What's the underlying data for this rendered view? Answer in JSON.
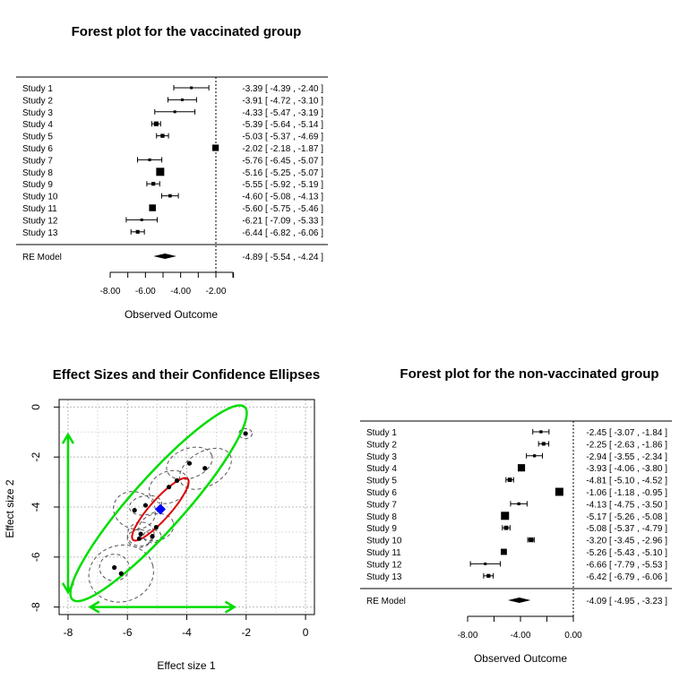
{
  "chart_data": [
    {
      "type": "forest",
      "title": "Forest plot for the vaccinated group",
      "xlabel": "Observed Outcome",
      "ticks": [
        -8,
        -6,
        -4,
        -2
      ],
      "tick_labels": [
        "-8.00",
        "-6.00",
        "-4.00",
        "-2.00"
      ],
      "xlim": [
        -8,
        -2
      ],
      "reference_line": -2,
      "studies": [
        {
          "label": "Study  1",
          "est": -3.39,
          "lo": -4.39,
          "hi": -2.4,
          "text": "-3.39 [ -4.39 , -2.40 ]"
        },
        {
          "label": "Study  2",
          "est": -3.91,
          "lo": -4.72,
          "hi": -3.1,
          "text": "-3.91 [ -4.72 , -3.10 ]"
        },
        {
          "label": "Study  3",
          "est": -4.33,
          "lo": -5.47,
          "hi": -3.19,
          "text": "-4.33 [ -5.47 , -3.19 ]"
        },
        {
          "label": "Study  4",
          "est": -5.39,
          "lo": -5.64,
          "hi": -5.14,
          "text": "-5.39 [ -5.64 , -5.14 ]"
        },
        {
          "label": "Study  5",
          "est": -5.03,
          "lo": -5.37,
          "hi": -4.69,
          "text": "-5.03 [ -5.37 , -4.69 ]"
        },
        {
          "label": "Study  6",
          "est": -2.02,
          "lo": -2.18,
          "hi": -1.87,
          "text": "-2.02 [ -2.18 , -1.87 ]"
        },
        {
          "label": "Study  7",
          "est": -5.76,
          "lo": -6.45,
          "hi": -5.07,
          "text": "-5.76 [ -6.45 , -5.07 ]"
        },
        {
          "label": "Study  8",
          "est": -5.16,
          "lo": -5.25,
          "hi": -5.07,
          "text": "-5.16 [ -5.25 , -5.07 ]"
        },
        {
          "label": "Study  9",
          "est": -5.55,
          "lo": -5.92,
          "hi": -5.19,
          "text": "-5.55 [ -5.92 , -5.19 ]"
        },
        {
          "label": "Study  10",
          "est": -4.6,
          "lo": -5.08,
          "hi": -4.13,
          "text": "-4.60 [ -5.08 , -4.13 ]"
        },
        {
          "label": "Study  11",
          "est": -5.6,
          "lo": -5.75,
          "hi": -5.46,
          "text": "-5.60 [ -5.75 , -5.46 ]"
        },
        {
          "label": "Study  12",
          "est": -6.21,
          "lo": -7.09,
          "hi": -5.33,
          "text": "-6.21 [ -7.09 , -5.33 ]"
        },
        {
          "label": "Study  13",
          "est": -6.44,
          "lo": -6.82,
          "hi": -6.06,
          "text": "-6.44 [ -6.82 , -6.06 ]"
        }
      ],
      "summary": {
        "label": "RE Model",
        "est": -4.89,
        "lo": -5.54,
        "hi": -4.24,
        "text": "-4.89 [ -5.54 , -4.24 ]"
      }
    },
    {
      "type": "scatter",
      "title": "Effect Sizes and their Confidence Ellipses",
      "xlabel": "Effect size 1",
      "ylabel": "Effect size 2",
      "xlim": [
        -8.3,
        0.3
      ],
      "ylim": [
        -8.3,
        0.3
      ],
      "xticks": [
        -8,
        -6,
        -4,
        -2,
        0
      ],
      "yticks": [
        0,
        -2,
        -4,
        -6,
        -8
      ],
      "grid": true,
      "points": [
        {
          "x": -3.39,
          "y": -2.45
        },
        {
          "x": -3.91,
          "y": -2.25
        },
        {
          "x": -4.33,
          "y": -2.94
        },
        {
          "x": -5.39,
          "y": -3.93
        },
        {
          "x": -5.03,
          "y": -4.81
        },
        {
          "x": -2.02,
          "y": -1.06
        },
        {
          "x": -5.76,
          "y": -4.13
        },
        {
          "x": -5.16,
          "y": -5.17
        },
        {
          "x": -5.55,
          "y": -5.08
        },
        {
          "x": -4.6,
          "y": -3.2
        },
        {
          "x": -5.6,
          "y": -5.26
        },
        {
          "x": -6.21,
          "y": -6.66
        },
        {
          "x": -6.44,
          "y": -6.42
        }
      ],
      "pooled_estimate": {
        "x": -4.89,
        "y": -4.09
      },
      "colors": {
        "points": "#000000",
        "study_ellipses": "#555555",
        "pooled_ellipse": "#dd0000",
        "prediction_ellipse": "#00dd00",
        "pooled_marker": "#0000ff",
        "arrows": "#00dd00"
      }
    },
    {
      "type": "forest",
      "title": "Forest plot for the non-vaccinated group",
      "xlabel": "Observed Outcome",
      "ticks": [
        -8,
        -4,
        0
      ],
      "tick_labels": [
        "-8.00",
        "-4.00",
        "0.00"
      ],
      "xlim": [
        -8,
        0
      ],
      "reference_line": 0,
      "studies": [
        {
          "label": "Study  1",
          "est": -2.45,
          "lo": -3.07,
          "hi": -1.84,
          "text": "-2.45 [ -3.07 , -1.84 ]"
        },
        {
          "label": "Study  2",
          "est": -2.25,
          "lo": -2.63,
          "hi": -1.86,
          "text": "-2.25 [ -2.63 , -1.86 ]"
        },
        {
          "label": "Study  3",
          "est": -2.94,
          "lo": -3.55,
          "hi": -2.34,
          "text": "-2.94 [ -3.55 , -2.34 ]"
        },
        {
          "label": "Study  4",
          "est": -3.93,
          "lo": -4.06,
          "hi": -3.8,
          "text": "-3.93 [ -4.06 , -3.80 ]"
        },
        {
          "label": "Study  5",
          "est": -4.81,
          "lo": -5.1,
          "hi": -4.52,
          "text": "-4.81 [ -5.10 , -4.52 ]"
        },
        {
          "label": "Study  6",
          "est": -1.06,
          "lo": -1.18,
          "hi": -0.95,
          "text": "-1.06 [ -1.18 , -0.95 ]"
        },
        {
          "label": "Study  7",
          "est": -4.13,
          "lo": -4.75,
          "hi": -3.5,
          "text": "-4.13 [ -4.75 , -3.50 ]"
        },
        {
          "label": "Study  8",
          "est": -5.17,
          "lo": -5.26,
          "hi": -5.08,
          "text": "-5.17 [ -5.26 , -5.08 ]"
        },
        {
          "label": "Study  9",
          "est": -5.08,
          "lo": -5.37,
          "hi": -4.79,
          "text": "-5.08 [ -5.37 , -4.79 ]"
        },
        {
          "label": "Study  10",
          "est": -3.2,
          "lo": -3.45,
          "hi": -2.96,
          "text": "-3.20 [ -3.45 , -2.96 ]"
        },
        {
          "label": "Study  11",
          "est": -5.26,
          "lo": -5.43,
          "hi": -5.1,
          "text": "-5.26 [ -5.43 , -5.10 ]"
        },
        {
          "label": "Study  12",
          "est": -6.66,
          "lo": -7.79,
          "hi": -5.53,
          "text": "-6.66 [ -7.79 , -5.53 ]"
        },
        {
          "label": "Study  13",
          "est": -6.42,
          "lo": -6.79,
          "hi": -6.06,
          "text": "-6.42 [ -6.79 , -6.06 ]"
        }
      ],
      "summary": {
        "label": "RE Model",
        "est": -4.09,
        "lo": -4.95,
        "hi": -3.23,
        "text": "-4.09 [ -4.95 , -3.23 ]"
      }
    }
  ]
}
